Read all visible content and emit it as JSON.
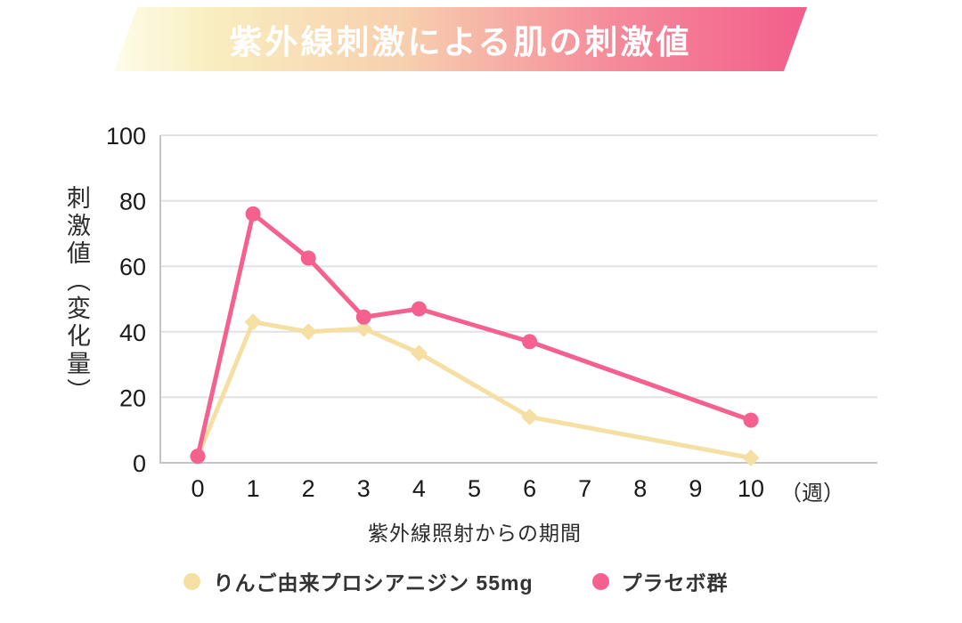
{
  "banner": {
    "title": "紫外線刺激による肌の刺激値"
  },
  "colors": {
    "banner_gradient_start": "#fefce9",
    "banner_gradient_end": "#f25e8b",
    "grid": "#e2e2e2",
    "axis": "#c4c4c4",
    "tick_text": "#1a1a1a",
    "series_apple": "#f6dfa2",
    "series_placebo": "#f4618e"
  },
  "chart_data": {
    "type": "line",
    "title": "紫外線刺激による肌の刺激値",
    "xlabel": "紫外線照射からの期間",
    "ylabel": "刺激値（変化量）",
    "x_unit_label": "（週）",
    "xlim": [
      0,
      10
    ],
    "ylim": [
      0,
      100
    ],
    "xticks": [
      0,
      1,
      2,
      3,
      4,
      5,
      6,
      7,
      8,
      9,
      10
    ],
    "yticks": [
      0,
      20,
      40,
      60,
      80,
      100
    ],
    "grid": true,
    "legend_position": "bottom",
    "series": [
      {
        "name": "りんご由来プロシアニジン 55mg",
        "color": "#f6dfa2",
        "marker": "diamond",
        "x": [
          0,
          1,
          2,
          3,
          4,
          6,
          10
        ],
        "values": [
          2,
          43,
          40,
          41,
          33.5,
          14,
          1.5
        ]
      },
      {
        "name": "プラセボ群",
        "color": "#f4618e",
        "marker": "circle",
        "x": [
          0,
          1,
          2,
          3,
          4,
          6,
          10
        ],
        "values": [
          2,
          76,
          62.5,
          44.5,
          47,
          37,
          13
        ]
      }
    ]
  }
}
